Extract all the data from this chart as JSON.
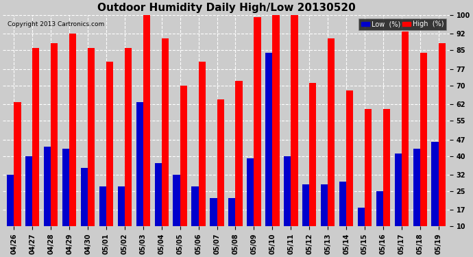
{
  "title": "Outdoor Humidity Daily High/Low 20130520",
  "copyright": "Copyright 2013 Cartronics.com",
  "legend_low": "Low  (%)",
  "legend_high": "High  (%)",
  "dates": [
    "04/26",
    "04/27",
    "04/28",
    "04/29",
    "04/30",
    "05/01",
    "05/02",
    "05/03",
    "05/04",
    "05/05",
    "05/06",
    "05/07",
    "05/08",
    "05/09",
    "05/10",
    "05/11",
    "05/12",
    "05/13",
    "05/14",
    "05/15",
    "05/16",
    "05/17",
    "05/18",
    "05/19"
  ],
  "high": [
    63,
    86,
    88,
    92,
    86,
    80,
    86,
    100,
    90,
    70,
    80,
    64,
    72,
    99,
    100,
    100,
    71,
    90,
    68,
    60,
    60,
    93,
    84,
    88
  ],
  "low": [
    32,
    40,
    44,
    43,
    35,
    27,
    27,
    63,
    37,
    32,
    27,
    22,
    22,
    39,
    84,
    40,
    28,
    28,
    29,
    18,
    25,
    41,
    43,
    46
  ],
  "bar_color_high": "#ff0000",
  "bar_color_low": "#0000cc",
  "background_color": "#cccccc",
  "plot_background": "#cccccc",
  "yticks": [
    10,
    17,
    25,
    32,
    40,
    47,
    55,
    62,
    70,
    77,
    85,
    92,
    100
  ],
  "ymin": 10,
  "ymax": 100,
  "title_fontsize": 11,
  "tick_fontsize": 7,
  "grid_color": "white",
  "legend_box_low_color": "#0000cc",
  "legend_box_high_color": "#ff0000",
  "bar_bottom": 10
}
